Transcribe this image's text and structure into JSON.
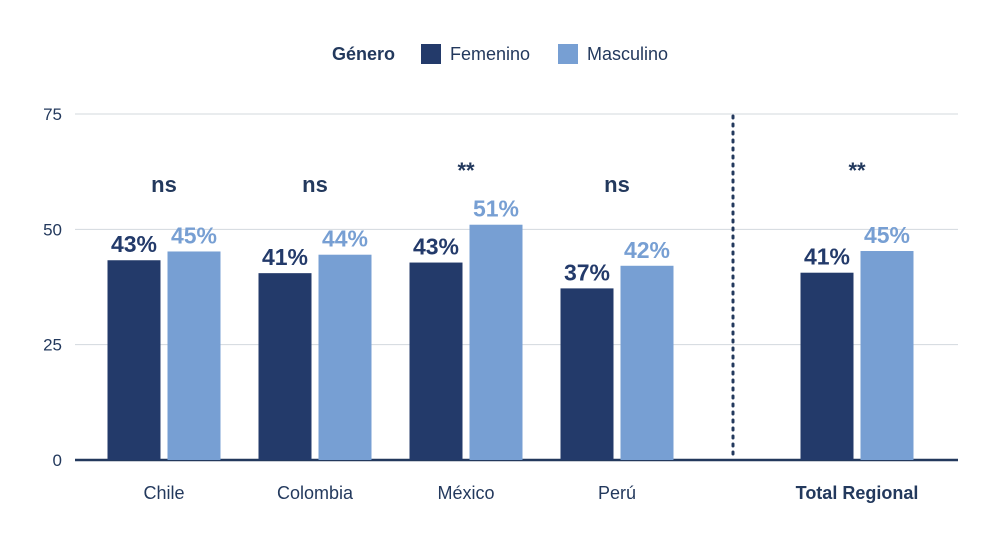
{
  "legend": {
    "title": "Género",
    "items": [
      {
        "name": "Femenino",
        "color": "#233a6a"
      },
      {
        "name": "Masculino",
        "color": "#779fd3"
      }
    ]
  },
  "chart_data": {
    "type": "bar",
    "title": "",
    "xlabel": "",
    "ylabel": "",
    "ylim": [
      0,
      75
    ],
    "yticks": [
      0,
      25,
      50,
      75
    ],
    "grid": true,
    "legend_position": "top-center",
    "categories": [
      "Chile",
      "Colombia",
      "México",
      "Perú",
      "Total Regional"
    ],
    "emphasized_category": "Total Regional",
    "separator_before": "Total Regional",
    "significance": [
      "ns",
      "ns",
      "**",
      "ns",
      "**"
    ],
    "series": [
      {
        "name": "Femenino",
        "color": "#233a6a",
        "values": [
          43.3,
          40.5,
          42.8,
          37.2,
          40.6
        ],
        "labels": [
          "43%",
          "41%",
          "43%",
          "37%",
          "41%"
        ]
      },
      {
        "name": "Masculino",
        "color": "#779fd3",
        "values": [
          45.2,
          44.5,
          51.0,
          42.1,
          45.3
        ],
        "labels": [
          "45%",
          "44%",
          "51%",
          "42%",
          "45%"
        ]
      }
    ]
  }
}
